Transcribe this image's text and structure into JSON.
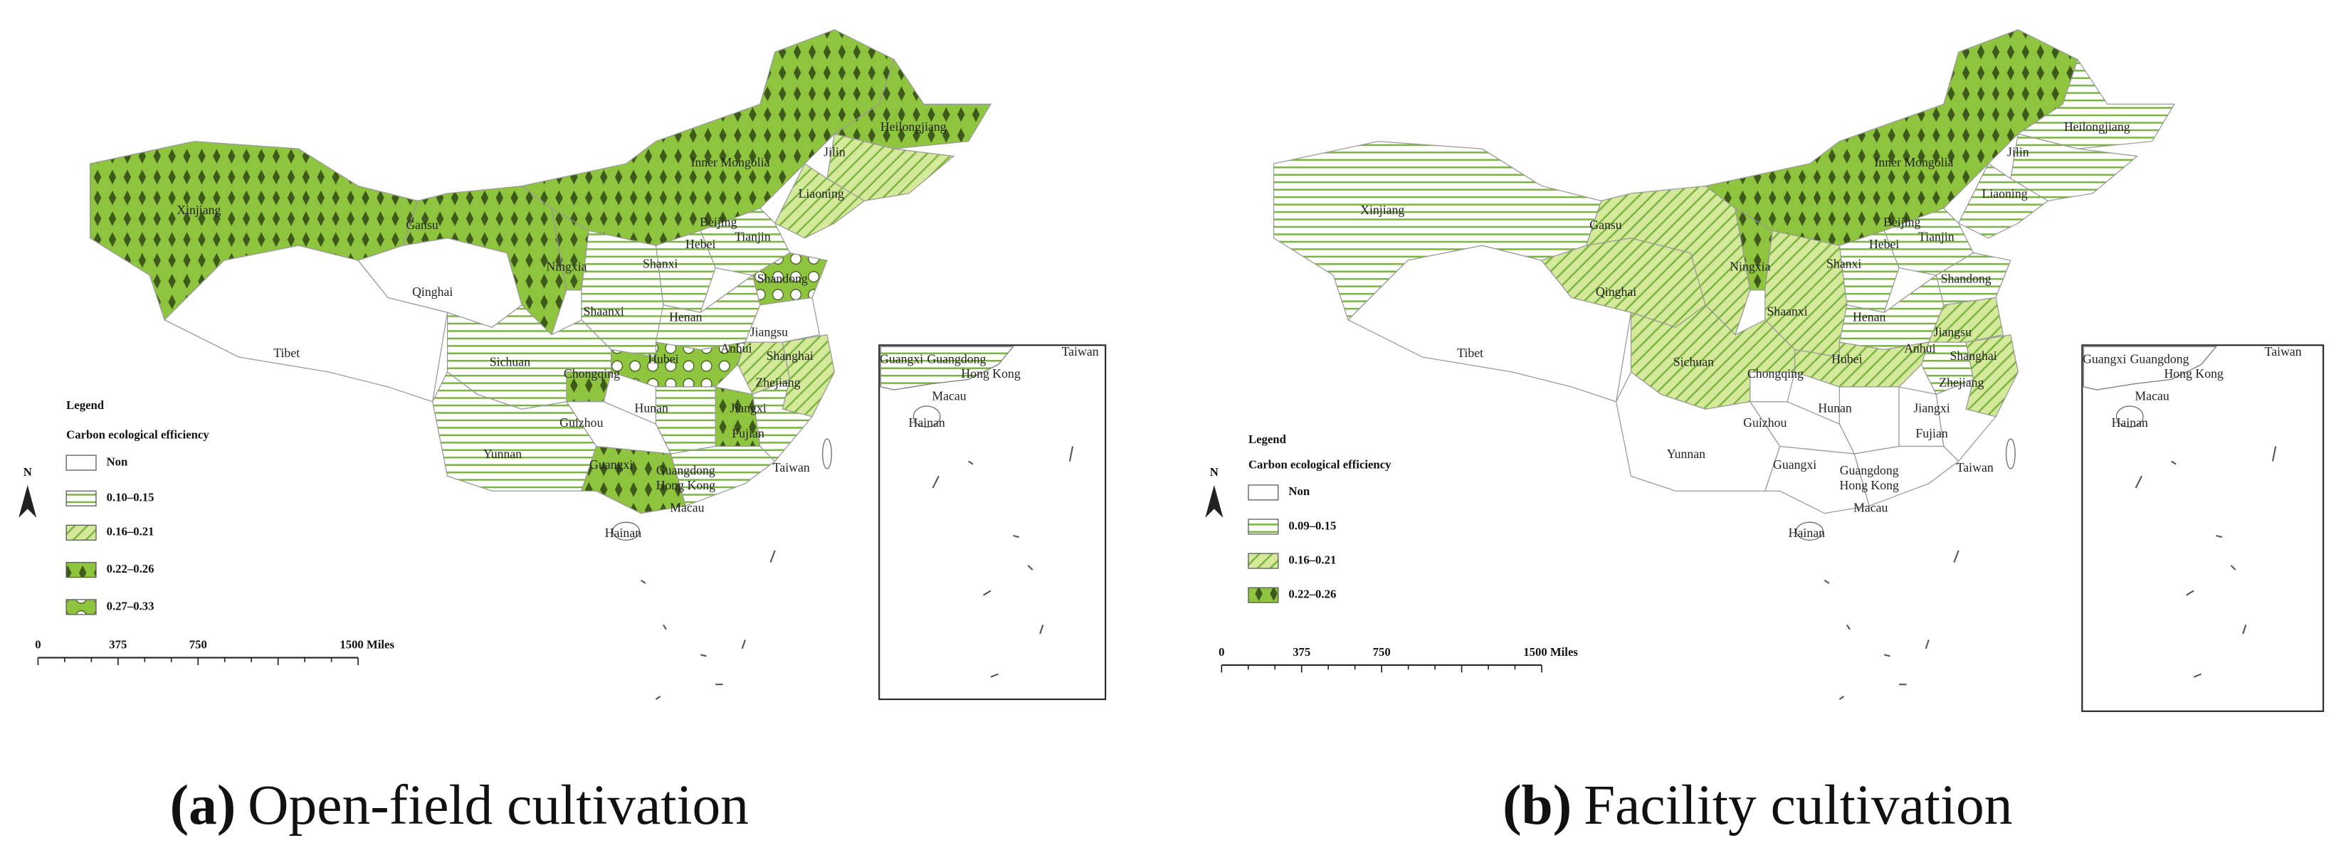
{
  "panels": [
    {
      "caption_label": "(a)",
      "caption": "Open-field cultivation",
      "north": "N",
      "legend": {
        "title": "Legend",
        "subtitle": "Carbon ecological efficiency",
        "items": [
          "Non",
          "0.10–0.15",
          "0.16–0.21",
          "0.22–0.26",
          "0.27–0.33"
        ]
      },
      "scale": [
        "0",
        "375",
        "750",
        "1500 Miles"
      ],
      "labels": [
        "Xinjiang",
        "Gansu",
        "Qinghai",
        "Tibet",
        "Inner Mongolia",
        "Heilongjiang",
        "Jilin",
        "Liaoning",
        "Beijing",
        "Tianjin",
        "Hebei",
        "Ningxia",
        "Shanxi",
        "Shandong",
        "Shaanxi",
        "Henan",
        "Jiangsu",
        "Anhui",
        "Shanghai",
        "Hubei",
        "Sichuan",
        "Chongqing",
        "Zhejiang",
        "Hunan",
        "Jiangxi",
        "Guizhou",
        "Yunnan",
        "Fujian",
        "Guangxi",
        "Guangdong",
        "Hong Kong",
        "Macau",
        "Taiwan",
        "Hainan"
      ],
      "inset_labels": [
        "Guangxi",
        "Guangdong",
        "Hong Kong",
        "Macau",
        "Taiwan",
        "Hainan"
      ]
    },
    {
      "caption_label": "(b)",
      "caption": "Facility cultivation",
      "north": "N",
      "legend": {
        "title": "Legend",
        "subtitle": "Carbon ecological efficiency",
        "items": [
          "Non",
          "0.09–0.15",
          "0.16–0.21",
          "0.22–0.26"
        ]
      },
      "scale": [
        "0",
        "375",
        "750",
        "1500 Miles"
      ],
      "labels": [
        "Xinjiang",
        "Gansu",
        "Qinghai",
        "Tibet",
        "Inner Mongolia",
        "Heilongjiang",
        "Jilin",
        "Liaoning",
        "Beijing",
        "Tianjin",
        "Hebei",
        "Ningxia",
        "Shanxi",
        "Shandong",
        "Shaanxi",
        "Henan",
        "Jiangsu",
        "Anhui",
        "Shanghai",
        "Hubei",
        "Sichuan",
        "Chongqing",
        "Zhejiang",
        "Hunan",
        "Jiangxi",
        "Guizhou",
        "Yunnan",
        "Fujian",
        "Guangxi",
        "Guangdong",
        "Hong Kong",
        "Macau",
        "Taiwan",
        "Hainan"
      ],
      "inset_labels": [
        "Guangxi",
        "Guangdong",
        "Hong Kong",
        "Macau",
        "Taiwan",
        "Hainan"
      ]
    }
  ]
}
